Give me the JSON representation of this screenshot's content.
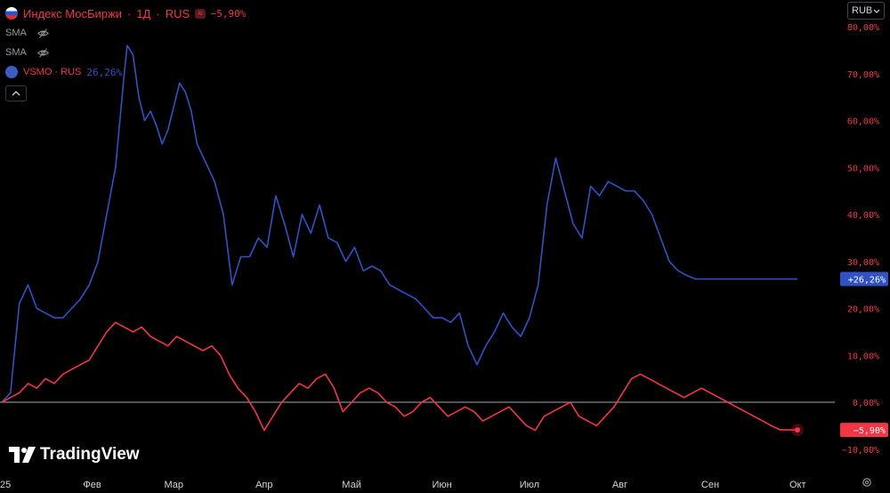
{
  "header": {
    "title": "Индекс МосБиржи",
    "sep1": "·",
    "interval": "1Д",
    "sep2": "·",
    "exchange": "RUS",
    "symbol_badge": "≈",
    "change": "−5,90%"
  },
  "indicators": [
    {
      "label": "SMA",
      "icon": "eye-off-icon"
    },
    {
      "label": "SMA",
      "icon": "eye-off-icon"
    }
  ],
  "compare": {
    "name": "VSMO · RUS",
    "change": "26,26%",
    "icon": "vsmo-logo-icon"
  },
  "currency": {
    "label": "RUB",
    "icon": "chevron-down-icon"
  },
  "logo": {
    "text": "TradingView"
  },
  "colors": {
    "blue": "#2f52c4",
    "red": "#f23645",
    "axis_text": "#d1d4dc",
    "zero_line": "#d1d4dc"
  },
  "chart_data": {
    "type": "line",
    "y_unit": "%",
    "ylim": [
      -12,
      80
    ],
    "y_ticks": [
      80,
      70,
      60,
      50,
      40,
      30,
      20,
      10,
      0,
      -10
    ],
    "y_tick_labels": [
      "80,00%",
      "70,00%",
      "60,00%",
      "50,00%",
      "40,00%",
      "30,00%",
      "20,00%",
      "10,00%",
      "0,00%",
      "−10,00%"
    ],
    "x_labels": [
      "25",
      "Фев",
      "Мар",
      "Апр",
      "Май",
      "Июн",
      "Июл",
      "Авг",
      "Сен",
      "Окт"
    ],
    "x_label_days": [
      0,
      31,
      59,
      90,
      120,
      151,
      181,
      212,
      243,
      273
    ],
    "x_range_days": [
      0,
      276
    ],
    "zero_line": 0,
    "series": [
      {
        "name": "VSMO",
        "color": "#2f52c4",
        "last_label": "+26,26%",
        "x": [
          0,
          3,
          6,
          9,
          12,
          15,
          18,
          21,
          24,
          27,
          30,
          33,
          36,
          39,
          42,
          43,
          45,
          47,
          49,
          51,
          53,
          55,
          57,
          59,
          61,
          63,
          65,
          67,
          70,
          73,
          76,
          79,
          82,
          85,
          88,
          91,
          94,
          97,
          100,
          103,
          106,
          109,
          112,
          115,
          118,
          121,
          124,
          127,
          130,
          133,
          136,
          139,
          142,
          145,
          148,
          151,
          154,
          157,
          160,
          163,
          166,
          169,
          172,
          175,
          178,
          181,
          184,
          187,
          190,
          193,
          196,
          199,
          202,
          205,
          208,
          211,
          214,
          217,
          220,
          223,
          226,
          229,
          232,
          235,
          238,
          241,
          244,
          247,
          250,
          253,
          256,
          259,
          262,
          265,
          268,
          271,
          273
        ],
        "y": [
          0,
          2,
          21,
          25,
          20,
          19,
          18,
          18,
          20,
          22,
          25,
          30,
          40,
          50,
          70,
          76,
          74,
          65,
          60,
          62,
          59,
          55,
          58,
          63,
          68,
          66,
          62,
          55,
          51,
          47,
          40,
          25,
          31,
          31,
          35,
          33,
          44,
          38,
          31,
          40,
          36,
          42,
          35,
          34,
          30,
          33,
          28,
          29,
          28,
          25,
          24,
          23,
          22,
          20,
          18,
          18,
          17,
          19,
          12,
          8,
          12,
          15,
          19,
          16,
          14,
          18,
          25,
          42,
          52,
          45,
          38,
          35,
          46,
          44,
          47,
          46,
          45,
          45,
          43,
          40,
          35,
          30,
          28,
          27,
          26.26,
          26.26,
          26.26,
          26.26,
          26.26,
          26.26,
          26.26,
          26.26,
          26.26,
          26.26,
          26.26,
          26.26,
          26.26
        ]
      },
      {
        "name": "Индекс МосБиржи",
        "color": "#f23645",
        "last_label": "−5,90%",
        "x": [
          0,
          3,
          6,
          9,
          12,
          15,
          18,
          21,
          24,
          27,
          30,
          33,
          36,
          39,
          42,
          45,
          48,
          51,
          54,
          57,
          60,
          63,
          66,
          69,
          72,
          75,
          78,
          81,
          84,
          87,
          90,
          93,
          96,
          99,
          102,
          105,
          108,
          111,
          114,
          117,
          120,
          123,
          126,
          129,
          132,
          135,
          138,
          141,
          144,
          147,
          150,
          153,
          156,
          159,
          162,
          165,
          168,
          171,
          174,
          177,
          180,
          183,
          186,
          189,
          192,
          195,
          198,
          201,
          204,
          207,
          210,
          213,
          216,
          219,
          222,
          225,
          228,
          231,
          234,
          237,
          240,
          243,
          246,
          249,
          252,
          255,
          258,
          261,
          264,
          267,
          270,
          272
        ],
        "y": [
          0,
          1,
          2,
          4,
          3,
          5,
          4,
          6,
          7,
          8,
          9,
          12,
          15,
          17,
          16,
          15,
          16,
          14,
          13,
          12,
          14,
          13,
          12,
          11,
          12,
          10,
          6,
          3,
          1,
          -2,
          -6,
          -3,
          0,
          2,
          4,
          3,
          5,
          6,
          3,
          -2,
          0,
          2,
          3,
          2,
          0,
          -1,
          -3,
          -2,
          0,
          1,
          -1,
          -3,
          -2,
          -1,
          -2,
          -4,
          -3,
          -2,
          -1,
          -3,
          -5,
          -6,
          -3,
          -2,
          -1,
          0,
          -3,
          -4,
          -5,
          -3,
          -1,
          2,
          5,
          6,
          5,
          4,
          3,
          2,
          1,
          2,
          3,
          2,
          1,
          0,
          -1,
          -2,
          -3,
          -4,
          -5,
          -5.9,
          -5.9,
          -5.9
        ]
      }
    ]
  }
}
